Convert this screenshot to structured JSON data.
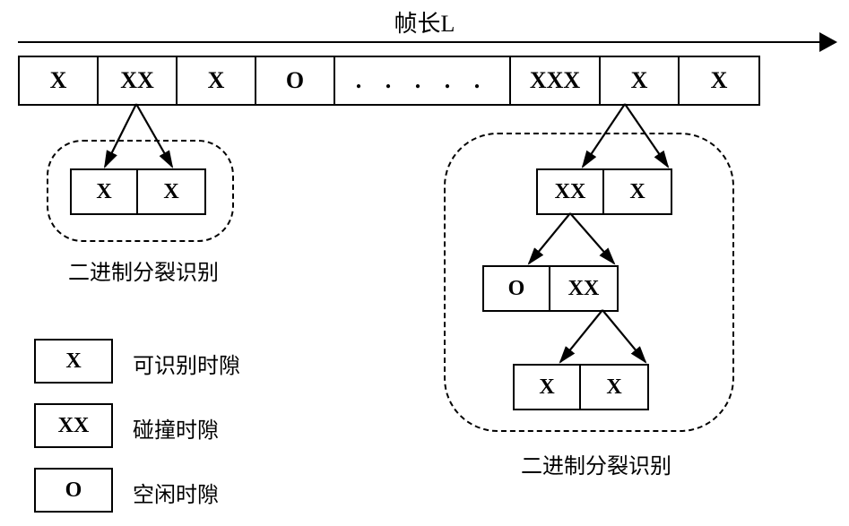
{
  "title": "帧长L",
  "frame": {
    "slots": [
      {
        "text": "X",
        "width": 88
      },
      {
        "text": "XX",
        "width": 88
      },
      {
        "text": "X",
        "width": 88
      },
      {
        "text": "O",
        "width": 88
      },
      {
        "text": ". . . . .",
        "width": 196,
        "dots": true
      },
      {
        "text": "XXX",
        "width": 100
      },
      {
        "text": "X",
        "width": 88
      },
      {
        "text": "X",
        "width": 88
      }
    ],
    "border_color": "#000000",
    "background": "#ffffff"
  },
  "left_split": {
    "cells": [
      "X",
      "X"
    ],
    "caption": "二进制分裂识别"
  },
  "right_split": {
    "level1": [
      "XX",
      "X"
    ],
    "level2": [
      "O",
      "XX"
    ],
    "level3": [
      "X",
      "X"
    ],
    "caption": "二进制分裂识别"
  },
  "legend": {
    "items": [
      {
        "symbol": "X",
        "label": "可识别时隙"
      },
      {
        "symbol": "XX",
        "label": "碰撞时隙"
      },
      {
        "symbol": "O",
        "label": "空闲时隙"
      }
    ]
  },
  "colors": {
    "line": "#000000",
    "text": "#000000",
    "bg": "#ffffff"
  },
  "arrows": [
    {
      "from": [
        152,
        116
      ],
      "to": [
        117,
        186
      ]
    },
    {
      "from": [
        152,
        116
      ],
      "to": [
        192,
        186
      ]
    },
    {
      "from": [
        697,
        116
      ],
      "to": [
        650,
        186
      ]
    },
    {
      "from": [
        697,
        116
      ],
      "to": [
        745,
        186
      ]
    },
    {
      "from": [
        636,
        238
      ],
      "to": [
        590,
        294
      ]
    },
    {
      "from": [
        636,
        238
      ],
      "to": [
        685,
        294
      ]
    },
    {
      "from": [
        672,
        346
      ],
      "to": [
        625,
        404
      ]
    },
    {
      "from": [
        672,
        346
      ],
      "to": [
        720,
        404
      ]
    }
  ]
}
